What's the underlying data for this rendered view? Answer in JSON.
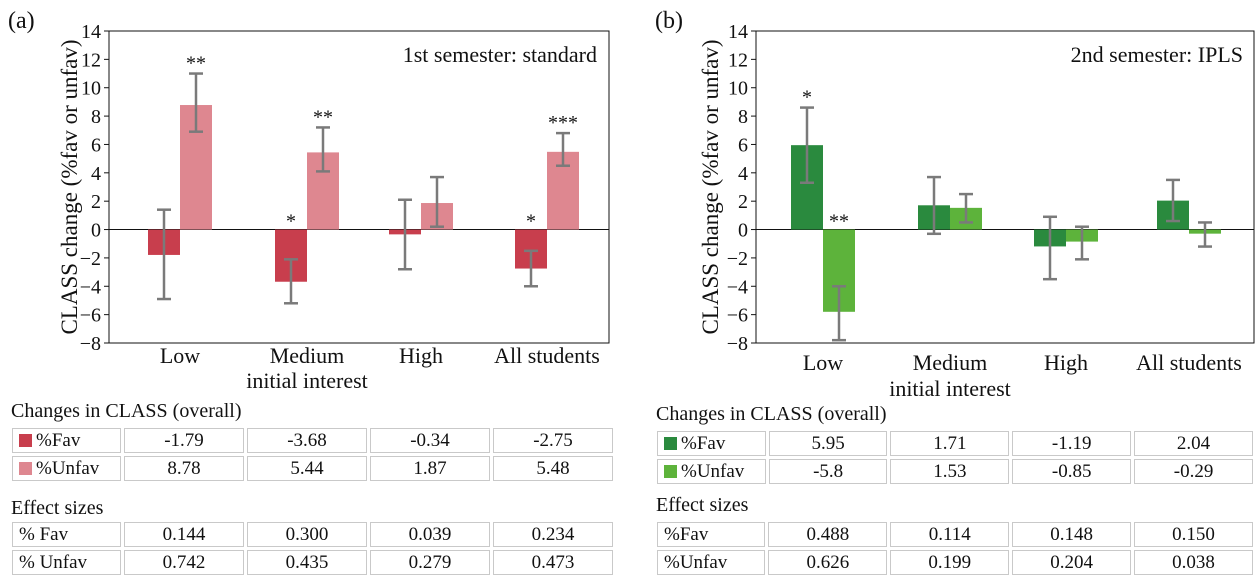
{
  "panels": [
    {
      "tag": "(a)",
      "title": "1st semester: standard",
      "ylabel": "CLASS change (%fav or unfav)",
      "xcaption": "initial interest",
      "chart_data": {
        "type": "bar",
        "ylim": [
          -8,
          14
        ],
        "yticks": [
          -8,
          -6,
          -4,
          -2,
          0,
          2,
          4,
          6,
          8,
          10,
          12,
          14
        ],
        "categories": [
          "Low",
          "Medium",
          "High",
          "All students"
        ],
        "series": [
          {
            "name": "%Fav",
            "color": "#c83e4d",
            "values": [
              -1.79,
              -3.68,
              -0.34,
              -2.75
            ],
            "err": [
              [
                -4.9,
                1.4
              ],
              [
                -5.2,
                -2.1
              ],
              [
                -2.8,
                2.1
              ],
              [
                -4.0,
                -1.5
              ]
            ],
            "sig": [
              "",
              "*",
              "",
              "*"
            ]
          },
          {
            "name": "%Unfav",
            "color": "#de8790",
            "values": [
              8.78,
              5.44,
              1.87,
              5.48
            ],
            "err": [
              [
                6.9,
                11.0
              ],
              [
                4.1,
                7.2
              ],
              [
                0.2,
                3.7
              ],
              [
                4.5,
                6.8
              ]
            ],
            "sig": [
              "**",
              "**",
              "",
              "***"
            ]
          }
        ]
      },
      "changes_title": "Changes in CLASS (overall)",
      "changes": [
        {
          "label": "%Fav",
          "color": "#c83e4d",
          "values": [
            "-1.79",
            "-3.68",
            "-0.34",
            "-2.75"
          ]
        },
        {
          "label": "%Unfav",
          "color": "#de8790",
          "values": [
            "8.78",
            "5.44",
            "1.87",
            "5.48"
          ]
        }
      ],
      "effect_title": "Effect sizes",
      "effects": [
        {
          "label": "% Fav",
          "values": [
            "0.144",
            "0.300",
            "0.039",
            "0.234"
          ]
        },
        {
          "label": "% Unfav",
          "values": [
            "0.742",
            "0.435",
            "0.279",
            "0.473"
          ]
        }
      ]
    },
    {
      "tag": "(b)",
      "title": "2nd semester: IPLS",
      "ylabel": "CLASS change (%fav or unfav)",
      "xcaption": "initial interest",
      "chart_data": {
        "type": "bar",
        "ylim": [
          -8,
          14
        ],
        "yticks": [
          -8,
          -6,
          -4,
          -2,
          0,
          2,
          4,
          6,
          8,
          10,
          12,
          14
        ],
        "categories": [
          "Low",
          "Medium",
          "High",
          "All students"
        ],
        "series": [
          {
            "name": "%Fav",
            "color": "#2a8a3e",
            "values": [
              5.95,
              1.71,
              -1.19,
              2.04
            ],
            "err": [
              [
                3.3,
                8.6
              ],
              [
                -0.3,
                3.7
              ],
              [
                -3.5,
                0.9
              ],
              [
                0.6,
                3.5
              ]
            ],
            "sig": [
              "*",
              "",
              "",
              ""
            ]
          },
          {
            "name": "%Unfav",
            "color": "#5db33b",
            "values": [
              -5.8,
              1.53,
              -0.85,
              -0.29
            ],
            "err": [
              [
                -7.8,
                -4.0
              ],
              [
                0.5,
                2.5
              ],
              [
                -2.1,
                0.2
              ],
              [
                -1.2,
                0.5
              ]
            ],
            "sig": [
              "**",
              "",
              "",
              ""
            ]
          }
        ]
      },
      "changes_title": "Changes in CLASS (overall)",
      "changes": [
        {
          "label": "%Fav",
          "color": "#2a8a3e",
          "values": [
            "5.95",
            "1.71",
            "-1.19",
            "2.04"
          ]
        },
        {
          "label": "%Unfav",
          "color": "#5db33b",
          "values": [
            "-5.8",
            "1.53",
            "-0.85",
            "-0.29"
          ]
        }
      ],
      "effect_title": "Effect sizes",
      "effects": [
        {
          "label": "%Fav",
          "values": [
            "0.488",
            "0.114",
            "0.148",
            "0.150"
          ]
        },
        {
          "label": "%Unfav",
          "values": [
            "0.626",
            "0.199",
            "0.204",
            "0.038"
          ]
        }
      ]
    }
  ]
}
